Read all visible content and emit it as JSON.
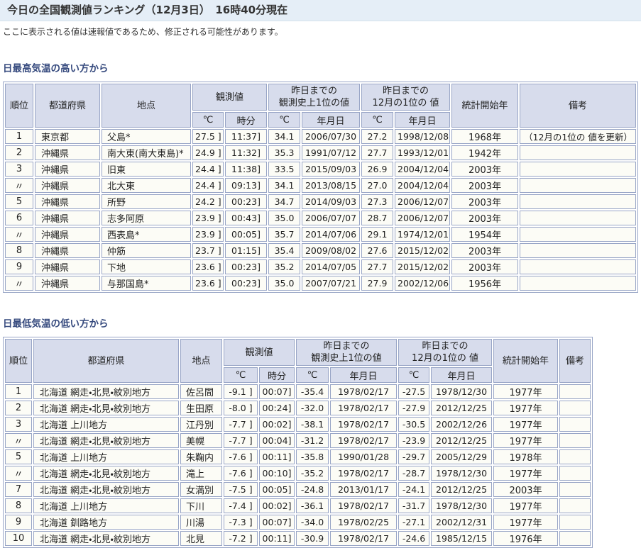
{
  "page": {
    "title": "今日の全国観測値ランキング（12月3日）　16時40分現在",
    "note": "ここに表示される値は速報値であるため、修正される可能性があります。"
  },
  "colors": {
    "title_bar_bg": "#E5EEF7",
    "table_header_bg": "#D7DCEC",
    "table_border": "#98A5C6",
    "section_heading_text": "#364A7E",
    "cell_bg": "#FCFCF6"
  },
  "headers": {
    "rank": "順位",
    "pref": "都道府県",
    "station": "地点",
    "obs_group": "観測値",
    "record_line1": "昨日までの",
    "record_line2": "観測史上1位の値",
    "dec_line1": "昨日までの",
    "dec_line2": "12月の1位の 値",
    "start_year": "統計開始年",
    "remarks": "備考",
    "unit": "℃",
    "time": "時分",
    "date": "年月日"
  },
  "table_max": {
    "heading": "日最高気温の高い方から",
    "rows": [
      [
        "1",
        "東京都",
        "父島*",
        "27.5 ]",
        "11:37]",
        "34.1",
        "2006/07/30",
        "27.2",
        "1998/12/08",
        "1968年",
        "（12月の1位の 値を更新）"
      ],
      [
        "2",
        "沖縄県",
        "南大東(南大東島)*",
        "24.9 ]",
        "11:32]",
        "35.3",
        "1991/07/12",
        "27.7",
        "1993/12/01",
        "1942年",
        ""
      ],
      [
        "3",
        "沖縄県",
        "旧東",
        "24.4 ]",
        "11:38]",
        "33.5",
        "2015/09/03",
        "26.9",
        "2004/12/04",
        "2003年",
        ""
      ],
      [
        "〃",
        "沖縄県",
        "北大東",
        "24.4 ]",
        "09:13]",
        "34.1",
        "2013/08/15",
        "27.0",
        "2004/12/04",
        "2003年",
        ""
      ],
      [
        "5",
        "沖縄県",
        "所野",
        "24.2 ]",
        "00:23]",
        "34.7",
        "2014/09/03",
        "27.3",
        "2006/12/07",
        "2003年",
        ""
      ],
      [
        "6",
        "沖縄県",
        "志多阿原",
        "23.9 ]",
        "00:43]",
        "35.0",
        "2006/07/07",
        "28.7",
        "2006/12/07",
        "2003年",
        ""
      ],
      [
        "〃",
        "沖縄県",
        "西表島*",
        "23.9 ]",
        "00:05]",
        "35.7",
        "2014/07/06",
        "29.1",
        "1974/12/01",
        "1954年",
        ""
      ],
      [
        "8",
        "沖縄県",
        "仲筋",
        "23.7 ]",
        "01:15]",
        "35.4",
        "2009/08/02",
        "27.6",
        "2015/12/02",
        "2003年",
        ""
      ],
      [
        "9",
        "沖縄県",
        "下地",
        "23.6 ]",
        "00:23]",
        "35.2",
        "2014/07/05",
        "27.7",
        "2015/12/02",
        "2003年",
        ""
      ],
      [
        "〃",
        "沖縄県",
        "与那国島*",
        "23.6 ]",
        "00:23]",
        "35.0",
        "2007/07/21",
        "27.9",
        "2002/12/06",
        "1956年",
        ""
      ]
    ]
  },
  "table_min": {
    "heading": "日最低気温の低い方から",
    "rows": [
      [
        "1",
        "北海道 網走・北見・紋別地方",
        "佐呂間",
        "-9.1 ]",
        "00:07]",
        "-35.4",
        "1978/02/17",
        "-27.5",
        "1978/12/30",
        "1977年",
        ""
      ],
      [
        "2",
        "北海道 網走・北見・紋別地方",
        "生田原",
        "-8.0 ]",
        "00:24]",
        "-32.0",
        "1978/02/17",
        "-27.9",
        "2012/12/25",
        "1977年",
        ""
      ],
      [
        "3",
        "北海道 上川地方",
        "江丹別",
        "-7.7 ]",
        "00:02]",
        "-38.1",
        "1978/02/17",
        "-30.5",
        "2002/12/26",
        "1977年",
        ""
      ],
      [
        "〃",
        "北海道 網走・北見・紋別地方",
        "美幌",
        "-7.7 ]",
        "00:04]",
        "-31.2",
        "1978/02/17",
        "-23.9",
        "2012/12/25",
        "1977年",
        ""
      ],
      [
        "5",
        "北海道 上川地方",
        "朱鞠内",
        "-7.6 ]",
        "00:11]",
        "-35.8",
        "1990/01/28",
        "-29.7",
        "2005/12/29",
        "1978年",
        ""
      ],
      [
        "〃",
        "北海道 網走・北見・紋別地方",
        "滝上",
        "-7.6 ]",
        "00:10]",
        "-35.2",
        "1978/02/17",
        "-28.7",
        "1978/12/30",
        "1977年",
        ""
      ],
      [
        "7",
        "北海道 網走・北見・紋別地方",
        "女満別",
        "-7.5 ]",
        "00:05]",
        "-24.8",
        "2013/01/17",
        "-24.1",
        "2012/12/25",
        "2003年",
        ""
      ],
      [
        "8",
        "北海道 上川地方",
        "下川",
        "-7.4 ]",
        "00:02]",
        "-36.1",
        "1978/02/17",
        "-31.7",
        "1978/12/30",
        "1977年",
        ""
      ],
      [
        "9",
        "北海道 釧路地方",
        "川湯",
        "-7.3 ]",
        "00:07]",
        "-34.0",
        "1978/02/25",
        "-27.1",
        "2002/12/31",
        "1977年",
        ""
      ],
      [
        "10",
        "北海道 網走・北見・紋別地方",
        "北見",
        "-7.2 ]",
        "00:11]",
        "-30.9",
        "1978/02/17",
        "-24.6",
        "1985/12/15",
        "1976年",
        ""
      ]
    ]
  }
}
